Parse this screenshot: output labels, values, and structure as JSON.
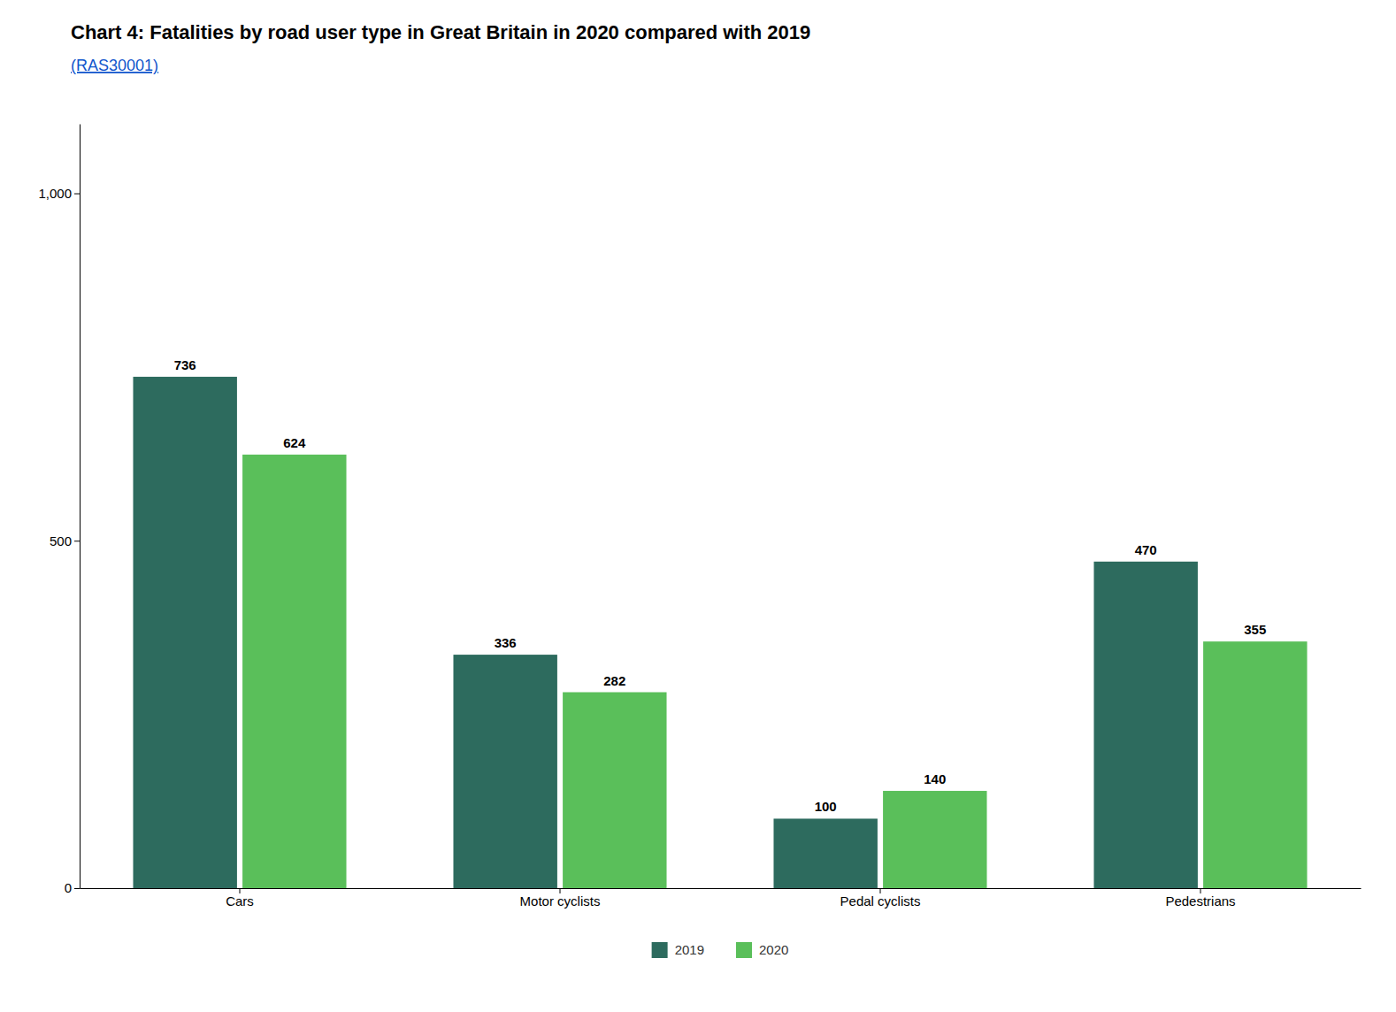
{
  "chart_data": {
    "type": "bar",
    "title": "Chart 4: Fatalities by road user type in Great Britain in 2020 compared with 2019",
    "subtitle": "(RAS30001)",
    "categories": [
      "Cars",
      "Motor cyclists",
      "Pedal cyclists",
      "Pedestrians"
    ],
    "series": [
      {
        "name": "2019",
        "color": "#2d6b5e",
        "values": [
          736,
          336,
          100,
          470
        ]
      },
      {
        "name": "2020",
        "color": "#5abf5a",
        "values": [
          624,
          282,
          140,
          355
        ]
      }
    ],
    "ylim": [
      0,
      1100
    ],
    "yticks": [
      0,
      500,
      {
        "value": 1000,
        "label": "1,000"
      }
    ],
    "grid": false,
    "legend": "bottom",
    "data_labels": true
  }
}
